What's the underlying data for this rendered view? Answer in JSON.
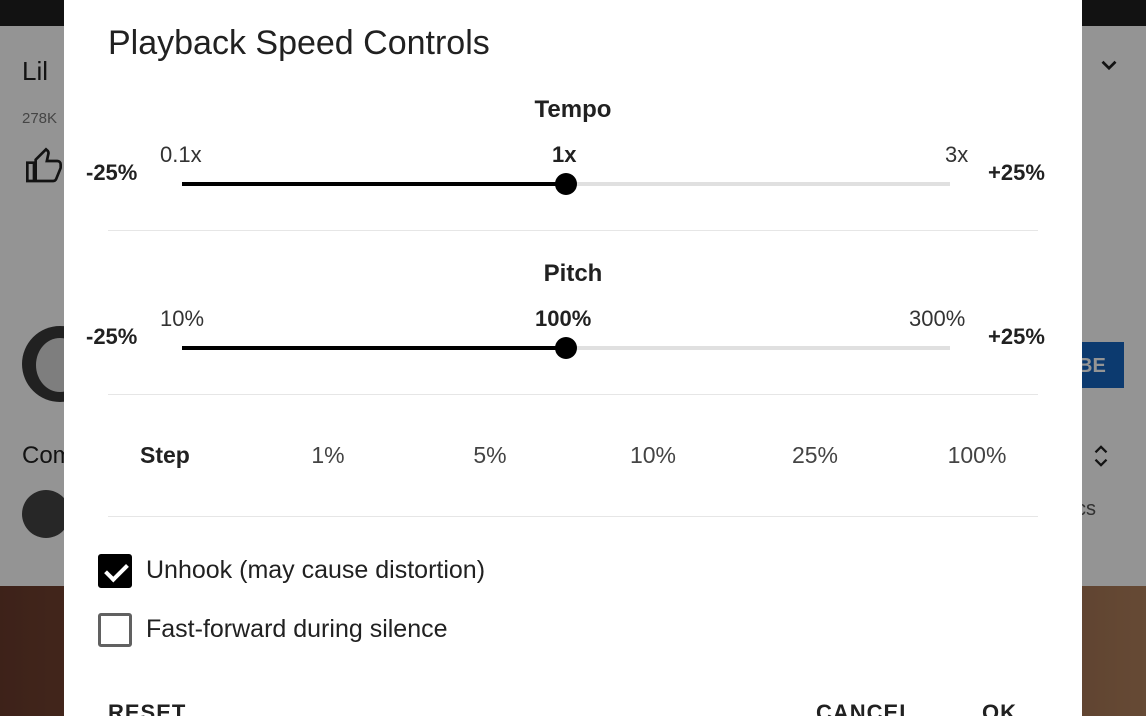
{
  "background": {
    "video_title": "Lil",
    "views": "278K",
    "subscribe_label": "BE",
    "comments_label": "Comments",
    "comment_tail": "cs"
  },
  "dialog": {
    "title": "Playback Speed Controls",
    "tempo": {
      "heading": "Tempo",
      "minus_label": "-25%",
      "plus_label": "+25%",
      "min_label": "0.1x",
      "current_label": "1x",
      "max_label": "3x",
      "value_fraction": 0.5
    },
    "pitch": {
      "heading": "Pitch",
      "minus_label": "-25%",
      "plus_label": "+25%",
      "min_label": "10%",
      "current_label": "100%",
      "max_label": "300%",
      "value_fraction": 0.5
    },
    "step": {
      "label": "Step",
      "options": [
        "1%",
        "5%",
        "10%",
        "25%",
        "100%"
      ]
    },
    "options": [
      {
        "label": "Unhook (may cause distortion)",
        "checked": true
      },
      {
        "label": "Fast-forward during silence",
        "checked": false
      }
    ],
    "buttons": {
      "reset": "RESET",
      "cancel": "CANCEL",
      "ok": "OK"
    }
  },
  "colors": {
    "accent": "#000000",
    "track": "#e0e0e0",
    "subscribe": "#1565c0"
  }
}
